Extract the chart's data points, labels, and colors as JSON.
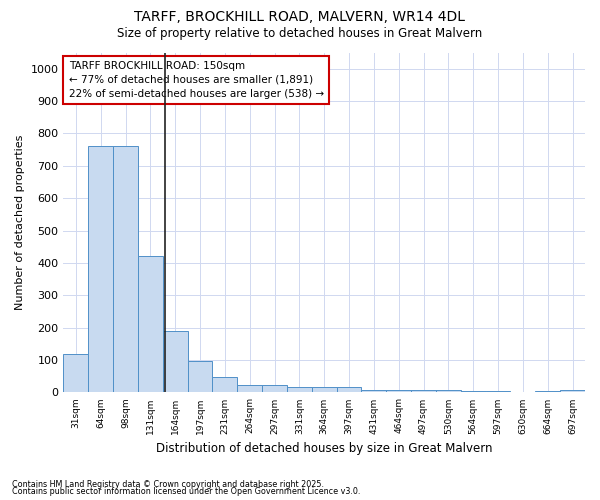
{
  "title1": "TARFF, BROCKHILL ROAD, MALVERN, WR14 4DL",
  "title2": "Size of property relative to detached houses in Great Malvern",
  "xlabel": "Distribution of detached houses by size in Great Malvern",
  "ylabel": "Number of detached properties",
  "footnote1": "Contains HM Land Registry data © Crown copyright and database right 2025.",
  "footnote2": "Contains public sector information licensed under the Open Government Licence v3.0.",
  "annotation_title": "TARFF BROCKHILL ROAD: 150sqm",
  "annotation_line1": "← 77% of detached houses are smaller (1,891)",
  "annotation_line2": "22% of semi-detached houses are larger (538) →",
  "bar_color": "#c8daf0",
  "bar_edge_color": "#5090c8",
  "vline_color": "#222222",
  "annotation_box_edgecolor": "#cc0000",
  "categories": [
    "31sqm",
    "64sqm",
    "98sqm",
    "131sqm",
    "164sqm",
    "197sqm",
    "231sqm",
    "264sqm",
    "297sqm",
    "331sqm",
    "364sqm",
    "397sqm",
    "431sqm",
    "464sqm",
    "497sqm",
    "530sqm",
    "564sqm",
    "597sqm",
    "630sqm",
    "664sqm",
    "697sqm"
  ],
  "values": [
    118,
    760,
    760,
    420,
    190,
    97,
    47,
    22,
    22,
    17,
    17,
    17,
    8,
    8,
    8,
    8,
    3,
    3,
    0,
    3,
    8
  ],
  "ylim": [
    0,
    1050
  ],
  "yticks": [
    0,
    100,
    200,
    300,
    400,
    500,
    600,
    700,
    800,
    900,
    1000
  ],
  "vline_x": 3.58,
  "bg_color": "#ffffff",
  "grid_color": "#d0d8f0"
}
